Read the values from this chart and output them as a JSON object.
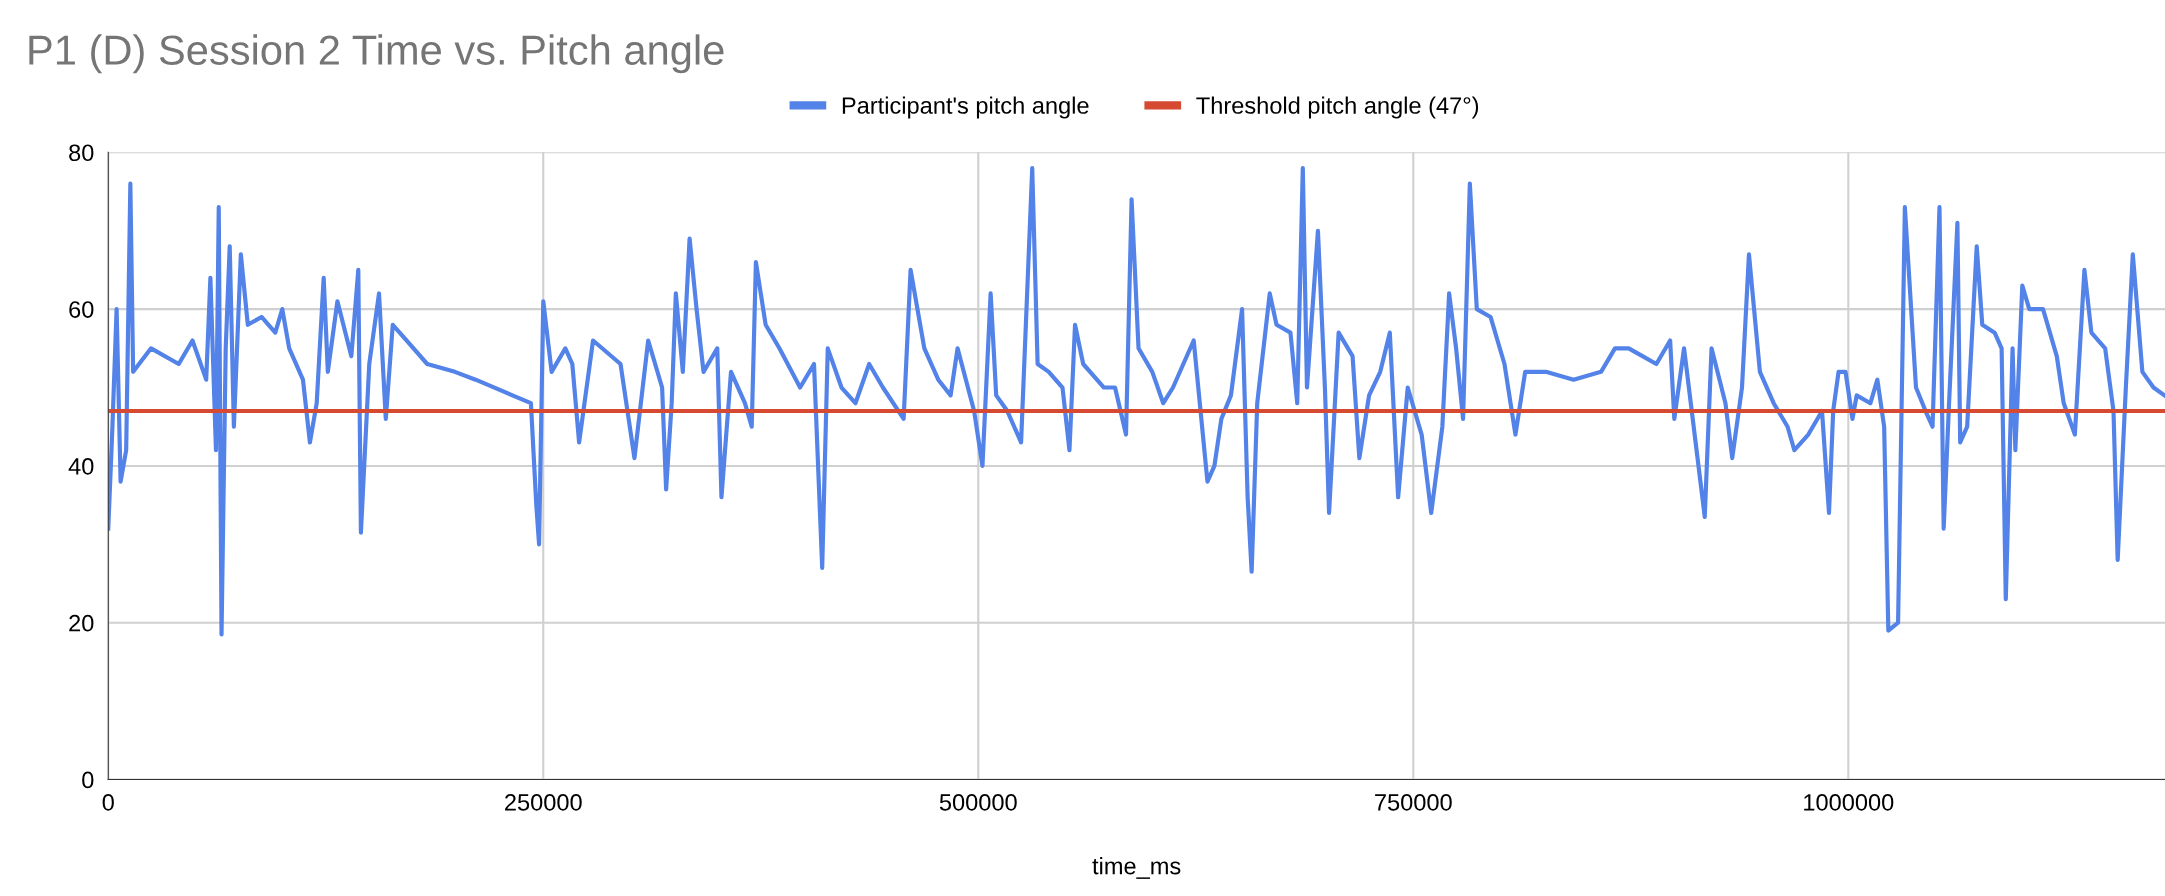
{
  "chart_data": {
    "type": "line",
    "title": "P1 (D) Session 2 Time vs. Pitch angle",
    "xlabel": "time_ms",
    "xlim": [
      0,
      1182000
    ],
    "xticks": [
      0,
      250000,
      500000,
      750000,
      1000000
    ],
    "ylim": [
      0,
      80
    ],
    "yticks": [
      0,
      20,
      40,
      60,
      80
    ],
    "grid": true,
    "legend": "top",
    "marker": "none",
    "line_style": "solid",
    "series": [
      {
        "name": "Participant's pitch angle",
        "color": "#5383e8",
        "x": [
          0,
          2400,
          4800,
          7100,
          10300,
          12700,
          14300,
          24600,
          40500,
          48400,
          56300,
          58700,
          61900,
          63500,
          65100,
          67500,
          69800,
          72200,
          76200,
          80200,
          88100,
          96000,
          100000,
          104000,
          111900,
          115900,
          119800,
          123800,
          126200,
          131700,
          139700,
          143700,
          145200,
          150000,
          155600,
          159500,
          163500,
          171400,
          183300,
          199200,
          211100,
          242900,
          246000,
          247600,
          250000,
          254800,
          262700,
          266700,
          270600,
          278600,
          294400,
          302400,
          310300,
          318300,
          320600,
          323800,
          326200,
          330200,
          334100,
          338100,
          342100,
          350000,
          352400,
          357900,
          365900,
          369800,
          372200,
          377800,
          385700,
          397600,
          405600,
          410300,
          413500,
          421400,
          429400,
          437300,
          445200,
          457100,
          461100,
          469000,
          477000,
          484100,
          488100,
          497600,
          502400,
          507100,
          510300,
          516700,
          524600,
          531000,
          534100,
          540500,
          548400,
          552400,
          555600,
          560300,
          572200,
          578600,
          584900,
          588100,
          592100,
          600000,
          606300,
          611900,
          623800,
          631700,
          635700,
          639700,
          645200,
          651600,
          654800,
          657100,
          660300,
          667500,
          671400,
          679400,
          683300,
          686500,
          688900,
          695200,
          699200,
          701600,
          707100,
          715100,
          719000,
          724600,
          731000,
          736500,
          741300,
          746800,
          754800,
          760300,
          766700,
          770600,
          774600,
          778600,
          782500,
          786500,
          794400,
          802400,
          808700,
          814300,
          826200,
          842100,
          857900,
          865900,
          873800,
          881700,
          889700,
          897600,
          900000,
          905600,
          917500,
          921400,
          929400,
          933300,
          938900,
          942900,
          949200,
          957100,
          965100,
          969000,
          977000,
          984900,
          988900,
          991300,
          994400,
          998400,
          1002400,
          1004800,
          1012700,
          1016700,
          1020600,
          1023000,
          1028600,
          1032500,
          1038900,
          1044400,
          1048400,
          1052400,
          1054800,
          1057900,
          1062700,
          1064300,
          1068300,
          1073800,
          1077000,
          1084100,
          1088100,
          1090500,
          1094400,
          1096000,
          1100000,
          1104000,
          1111900,
          1119800,
          1123800,
          1130200,
          1135700,
          1139700,
          1147600,
          1152400,
          1154800,
          1159500,
          1163500,
          1169000,
          1175400,
          1181700
        ],
        "values": [
          32,
          45,
          60,
          38,
          42,
          76,
          52,
          55,
          53,
          56,
          51,
          64,
          42,
          73,
          18.5,
          55,
          68,
          45,
          67,
          58,
          59,
          57,
          60,
          55,
          51,
          43,
          48,
          64,
          52,
          61,
          54,
          65,
          31.5,
          53,
          62,
          46,
          58,
          56,
          53,
          52,
          51,
          48,
          35,
          30,
          61,
          52,
          55,
          53,
          43,
          56,
          53,
          41,
          56,
          50,
          37,
          48,
          62,
          52,
          69,
          60,
          52,
          55,
          36,
          52,
          48,
          45,
          66,
          58,
          55,
          50,
          53,
          27,
          55,
          50,
          48,
          53,
          50,
          46,
          65,
          55,
          51,
          49,
          55,
          47,
          40,
          62,
          49,
          47,
          43,
          78,
          53,
          52,
          50,
          42,
          58,
          53,
          50,
          50,
          44,
          74,
          55,
          52,
          48,
          50,
          56,
          38,
          40,
          46,
          49,
          60,
          36,
          26.5,
          48,
          62,
          58,
          57,
          48,
          78,
          50,
          70,
          50,
          34,
          57,
          54,
          41,
          49,
          52,
          57,
          36,
          50,
          44,
          34,
          45,
          62,
          55,
          46,
          76,
          60,
          59,
          53,
          44,
          52,
          52,
          51,
          52,
          55,
          55,
          54,
          53,
          56,
          46,
          55,
          33.5,
          55,
          48,
          41,
          50,
          67,
          52,
          48,
          45,
          42,
          44,
          47,
          34,
          47,
          52,
          52,
          46,
          49,
          48,
          51,
          45,
          19,
          20,
          73,
          50,
          47,
          45,
          73,
          32,
          48,
          71,
          43,
          45,
          68,
          58,
          57,
          55,
          23,
          55,
          42,
          63,
          60,
          60,
          54,
          48,
          44,
          65,
          57,
          55,
          47,
          28,
          50,
          67,
          52,
          50,
          49
        ]
      },
      {
        "name": "Threshold pitch angle (47°)",
        "color": "#d64a32",
        "x": [
          0,
          1182000
        ],
        "values": [
          47,
          47
        ]
      }
    ]
  }
}
